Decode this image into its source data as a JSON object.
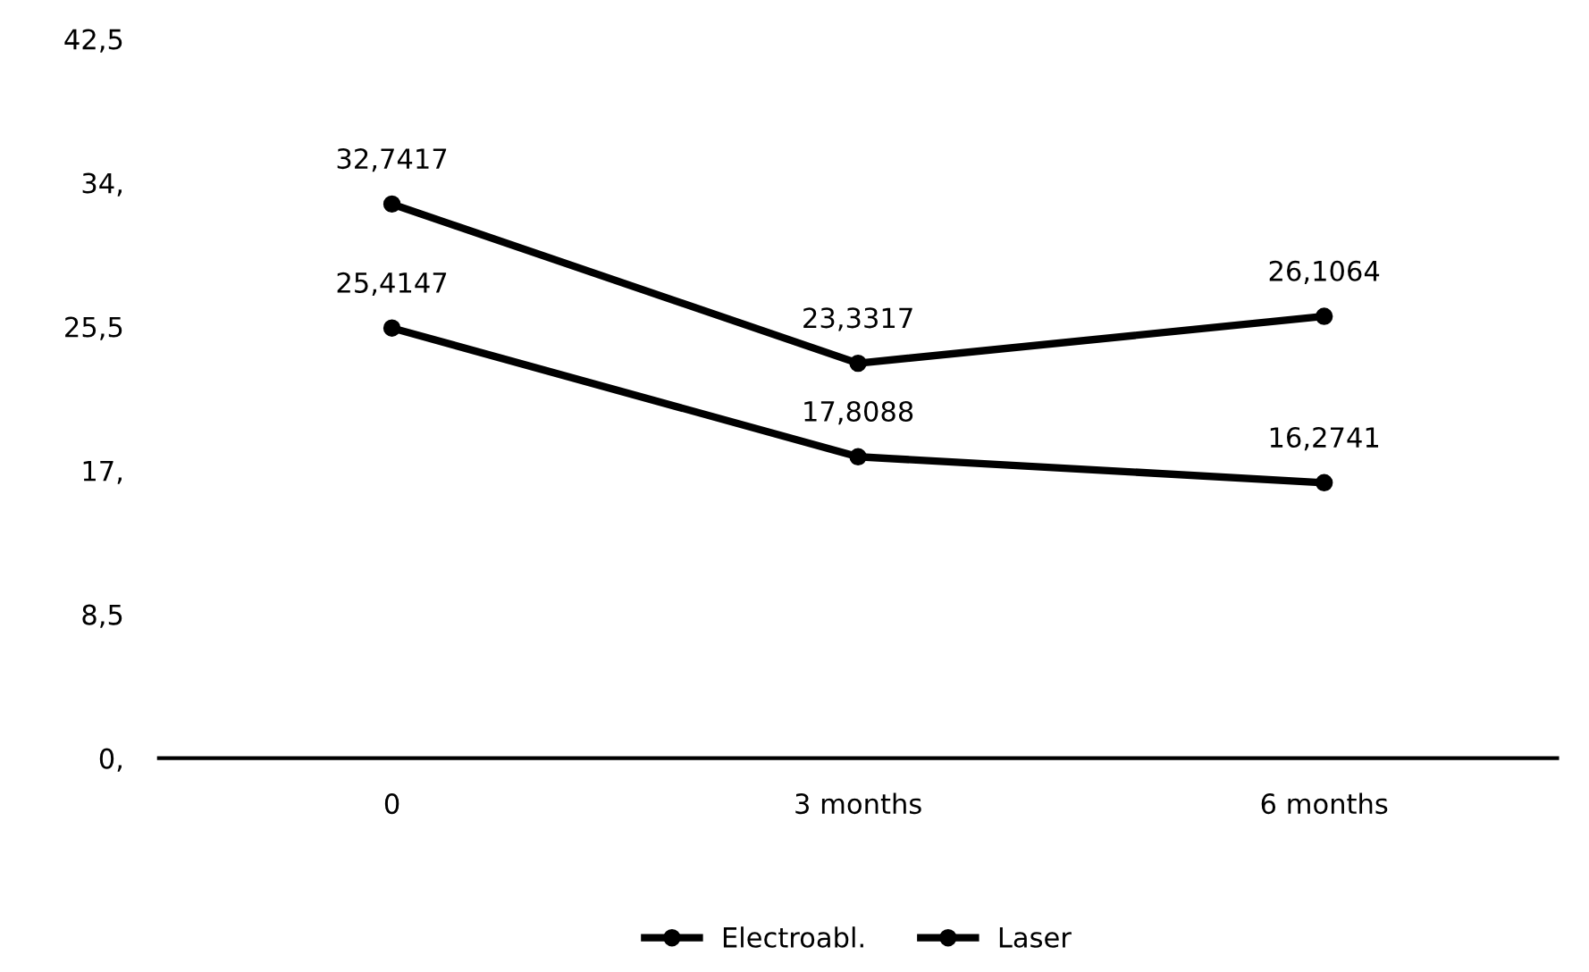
{
  "chart_data": {
    "type": "line",
    "categories": [
      "0",
      "3 months",
      "6 months"
    ],
    "series": [
      {
        "name": "Electroabl.",
        "color": "#000000",
        "values": [
          32.7417,
          23.3317,
          26.1064
        ],
        "value_labels": [
          "32,7417",
          "23,3317",
          "26,1064"
        ]
      },
      {
        "name": "Laser",
        "color": "#000000",
        "values": [
          25.4147,
          17.8088,
          16.2741
        ],
        "value_labels": [
          "25,4147",
          "17,8088",
          "16,2741"
        ]
      }
    ],
    "ylim": [
      0,
      42.5
    ],
    "yticks": [
      {
        "value": 0,
        "label": "0,"
      },
      {
        "value": 8.5,
        "label": "8,5"
      },
      {
        "value": 17,
        "label": "17,"
      },
      {
        "value": 25.5,
        "label": "25,5"
      },
      {
        "value": 34,
        "label": "34,"
      },
      {
        "value": 42.5,
        "label": "42,5"
      }
    ],
    "grid": false,
    "legend": "bottom",
    "marker": "circle",
    "line_style": "solid"
  }
}
